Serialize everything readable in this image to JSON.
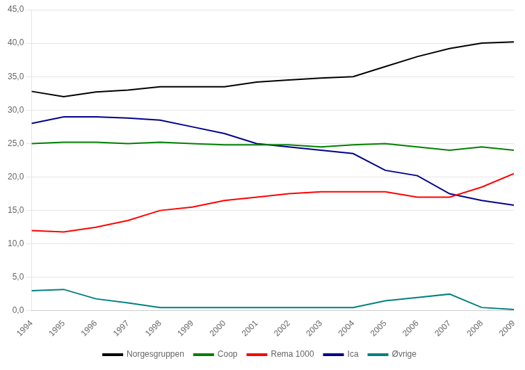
{
  "chart_data": {
    "type": "line",
    "x": [
      1994,
      1995,
      1996,
      1997,
      1998,
      1999,
      2000,
      2001,
      2002,
      2003,
      2004,
      2005,
      2006,
      2007,
      2008,
      2009
    ],
    "series": [
      {
        "name": "Norgesgruppen",
        "color": "#000000",
        "values": [
          32.8,
          32.0,
          32.7,
          33.0,
          33.5,
          33.5,
          33.5,
          34.2,
          34.5,
          34.8,
          35.0,
          36.5,
          38.0,
          39.2,
          40.0,
          40.2
        ]
      },
      {
        "name": "Coop",
        "color": "#008000",
        "values": [
          25.0,
          25.2,
          25.2,
          25.0,
          25.2,
          25.0,
          24.8,
          24.8,
          24.8,
          24.5,
          24.8,
          25.0,
          24.5,
          24.0,
          24.5,
          24.0
        ]
      },
      {
        "name": "Rema 1000",
        "color": "#ff0000",
        "values": [
          12.0,
          11.8,
          12.5,
          13.5,
          15.0,
          15.5,
          16.5,
          17.0,
          17.5,
          17.8,
          17.8,
          17.8,
          17.0,
          17.0,
          18.5,
          20.5
        ]
      },
      {
        "name": "Ica",
        "color": "#00008b",
        "values": [
          28.0,
          29.0,
          29.0,
          28.8,
          28.5,
          27.5,
          26.5,
          25.0,
          24.5,
          24.0,
          23.5,
          21.0,
          20.2,
          17.5,
          16.5,
          15.8
        ]
      },
      {
        "name": "Øvrige",
        "color": "#008080",
        "values": [
          3.0,
          3.2,
          1.8,
          1.2,
          0.5,
          0.5,
          0.5,
          0.5,
          0.5,
          0.5,
          0.5,
          1.5,
          2.0,
          2.5,
          0.5,
          0.2
        ]
      }
    ],
    "xlim": [
      1994,
      2009
    ],
    "xticks": [
      1994,
      1995,
      1996,
      1997,
      1998,
      1999,
      2000,
      2001,
      2002,
      2003,
      2004,
      2005,
      2006,
      2007,
      2008,
      2009
    ],
    "ylim": [
      0,
      45
    ],
    "yticks": [
      {
        "value": 0,
        "label": "0,0"
      },
      {
        "value": 5,
        "label": "5,0"
      },
      {
        "value": 10,
        "label": "10,0"
      },
      {
        "value": 15,
        "label": "15,0"
      },
      {
        "value": 20,
        "label": "20,0"
      },
      {
        "value": 25,
        "label": "25,0"
      },
      {
        "value": 30,
        "label": "30,0"
      },
      {
        "value": 35,
        "label": "35,0"
      },
      {
        "value": 40,
        "label": "40,0"
      },
      {
        "value": 45,
        "label": "45,0"
      }
    ],
    "grid": "y",
    "legend": "bottom"
  }
}
